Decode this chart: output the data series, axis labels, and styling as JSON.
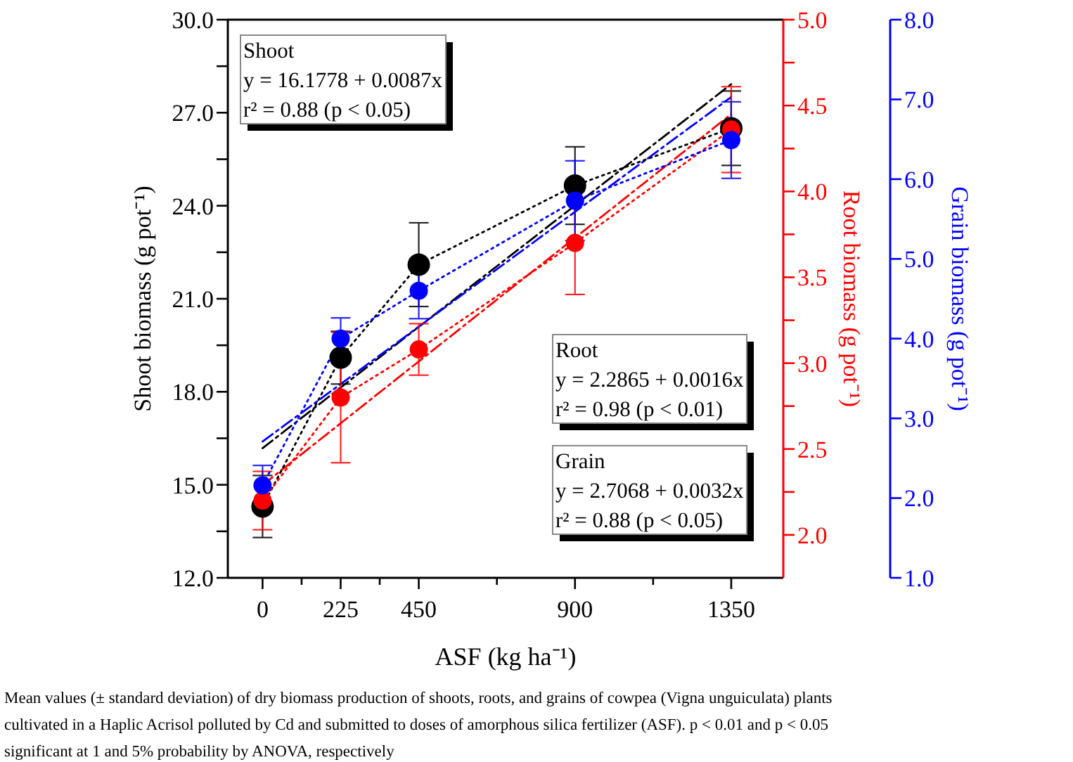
{
  "chart_data": {
    "type": "line",
    "xlabel": "ASF (kg ha⁻¹)",
    "ylabel": "Shoot biomass (g pot⁻¹)",
    "y2label": "Root biomass (g pot⁻¹)",
    "y3label": "Grain biomass (g pot⁻¹)",
    "xlim": [
      -100,
      1500
    ],
    "xticks": [
      0,
      {
        "value": 112.5,
        "label": null
      },
      225,
      {
        "value": 337.5,
        "label": null
      },
      450,
      {
        "value": 675,
        "label": null
      },
      900,
      {
        "value": 1125,
        "label": null
      },
      1350
    ],
    "ylim": [
      12,
      30
    ],
    "yticks": [
      {
        "value": 12,
        "label": "12.0"
      },
      {
        "value": 13.5,
        "label": null
      },
      {
        "value": 15,
        "label": "15.0"
      },
      {
        "value": 16.5,
        "label": null
      },
      {
        "value": 18,
        "label": "18.0"
      },
      {
        "value": 19.5,
        "label": null
      },
      {
        "value": 21,
        "label": "21.0"
      },
      {
        "value": 22.5,
        "label": null
      },
      {
        "value": 24,
        "label": "24.0"
      },
      {
        "value": 25.5,
        "label": null
      },
      {
        "value": 27,
        "label": "27.0"
      },
      {
        "value": 28.5,
        "label": null
      },
      {
        "value": 30,
        "label": "30.0"
      }
    ],
    "y2lim": [
      1.75,
      5.0
    ],
    "y2ticks": [
      {
        "value": 2,
        "label": "2.0"
      },
      {
        "value": 2.25,
        "label": null
      },
      {
        "value": 2.5,
        "label": "2.5"
      },
      {
        "value": 2.75,
        "label": null
      },
      {
        "value": 3,
        "label": "3.0"
      },
      {
        "value": 3.25,
        "label": null
      },
      {
        "value": 3.5,
        "label": "3.5"
      },
      {
        "value": 3.75,
        "label": null
      },
      {
        "value": 4,
        "label": "4.0"
      },
      {
        "value": 4.25,
        "label": null
      },
      {
        "value": 4.5,
        "label": "4.5"
      },
      {
        "value": 4.75,
        "label": null
      },
      {
        "value": 5,
        "label": "5.0"
      }
    ],
    "y3lim": [
      1,
      8
    ],
    "y3ticks": [
      {
        "value": 1,
        "label": "1.0"
      },
      {
        "value": 2,
        "label": "2.0"
      },
      {
        "value": 3,
        "label": "3.0"
      },
      {
        "value": 4,
        "label": "4.0"
      },
      {
        "value": 5,
        "label": "5.0"
      },
      {
        "value": 6,
        "label": "6.0"
      },
      {
        "value": 7,
        "label": "7.0"
      },
      {
        "value": 8,
        "label": "8.0"
      }
    ],
    "grid": false,
    "series": [
      {
        "color": "#000000",
        "x": [
          0,
          1350
        ],
        "values": [
          16.18,
          27.92
        ],
        "line_style": "dashed",
        "marker": "none"
      },
      {
        "color": "#ff0000",
        "x": [
          0,
          1350
        ],
        "values": [
          2.29,
          4.45
        ],
        "line_style": "dashed",
        "marker": "none",
        "axis": "y2"
      },
      {
        "color": "#0000ff",
        "x": [
          0,
          1350
        ],
        "values": [
          2.71,
          7.03
        ],
        "line_style": "dashed",
        "marker": "none",
        "axis": "y3"
      },
      {
        "color": "#000000",
        "x": [
          0,
          225,
          450,
          900,
          1350
        ],
        "values": [
          14.3,
          19.1,
          22.1,
          24.65,
          26.5
        ],
        "errors": [
          1.0,
          0.85,
          1.35,
          1.25,
          1.2
        ],
        "line_style": "dotted",
        "marker": "circle"
      },
      {
        "color": "#ff0000",
        "x": [
          0,
          225,
          450,
          900,
          1350
        ],
        "values": [
          2.2,
          2.8,
          3.08,
          3.7,
          4.36
        ],
        "errors": [
          0.17,
          0.38,
          0.15,
          0.3,
          0.25
        ],
        "line_style": "dotted",
        "marker": "circle",
        "axis": "y2"
      },
      {
        "color": "#0000ff",
        "x": [
          0,
          225,
          450,
          900,
          1350
        ],
        "values": [
          2.16,
          4.0,
          4.6,
          5.73,
          6.49
        ],
        "errors": [
          0.25,
          0.26,
          0.35,
          0.5,
          0.48
        ],
        "line_style": "dotted",
        "marker": "circle",
        "axis": "y3"
      }
    ],
    "annotations": [
      "Shoot\ny = 16.1778 + 0.0087x\nr² = 0.88 (p < 0.05)",
      "Root\ny = 2.2865 + 0.0016x\nr² = 0.98 (p < 0.01)",
      "Grain\ny = 2.7068 + 0.0032x\nr² = 0.88 (p < 0.05)",
      "Mean values (± standard deviation) of dry biomass production of shoots, roots, and grains of cowpea (Vigna unguiculata) plants cultivated in a Haplic Acrisol polluted by Cd and submitted to doses of amorphous silica fertilizer (ASF). p < 0.01 and p < 0.05 significant at 1 and 5% probability by ANOVA, respectively"
    ]
  }
}
